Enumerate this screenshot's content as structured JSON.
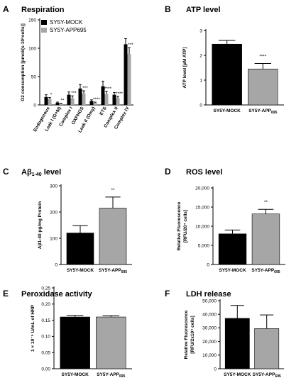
{
  "colors": {
    "black": "#000000",
    "gray": "#a6a6a6"
  },
  "panels": [
    {
      "id": "A",
      "type": "bar",
      "title": "Respiration",
      "ylabel": "O2 consumption [pmol/(s·10⁶cells)]",
      "ylim": [
        0,
        150
      ],
      "yticks": [
        "0",
        "50",
        "100",
        "150"
      ],
      "legend": {
        "position": "top-left",
        "entries": [
          {
            "name": "SY5Y-MOCK",
            "color": "black"
          },
          {
            "name": "SY5Y-APP695",
            "color": "gray"
          }
        ]
      },
      "categories": [
        "Endogenous",
        "Leak I (G+M)",
        "Complex I",
        "OXPHOS",
        "Leak II (Omy)",
        "ETS",
        "Complex II",
        "Complex IV"
      ],
      "series": [
        {
          "name": "SY5Y-MOCK",
          "color": "black",
          "values": [
            14,
            4,
            18,
            29,
            7,
            33,
            18,
            107
          ],
          "errors": [
            4,
            1,
            5,
            7,
            2,
            9,
            4,
            10
          ]
        },
        {
          "name": "SY5Y-APP695",
          "color": "gray",
          "values": [
            10,
            2,
            12,
            20,
            4,
            19,
            12,
            90
          ],
          "errors": [
            3,
            1,
            4,
            5,
            1,
            5,
            3,
            11
          ]
        }
      ],
      "significance": [
        "*",
        "**",
        "***",
        "***",
        "****",
        "****",
        "****",
        "***"
      ]
    },
    {
      "id": "B",
      "type": "bar",
      "title": "ATP level",
      "ylabel": "ATP level [µM ATP]",
      "ylim": [
        0,
        3
      ],
      "yticks": [
        "0",
        "1",
        "2",
        "3"
      ],
      "categories": [
        "SY5Y-MOCK",
        "SY5Y-APP"
      ],
      "category_subscripts": [
        "",
        "695"
      ],
      "values": [
        2.45,
        1.45
      ],
      "errors": [
        0.15,
        0.22
      ],
      "colors": [
        "black",
        "gray"
      ],
      "significance": [
        "",
        "****"
      ]
    },
    {
      "id": "C",
      "type": "bar",
      "title": "Aβ1-40 level",
      "ylabel": "Aβ1-40 pg/mg Protein",
      "ylim": [
        0,
        300
      ],
      "yticks": [
        "0",
        "100",
        "200",
        "300"
      ],
      "categories": [
        "SY5Y-MOCK",
        "SY5Y-APP"
      ],
      "category_subscripts": [
        "",
        "695"
      ],
      "values": [
        120,
        215
      ],
      "errors": [
        28,
        42
      ],
      "colors": [
        "black",
        "gray"
      ],
      "significance": [
        "",
        "**"
      ]
    },
    {
      "id": "D",
      "type": "bar",
      "title": "ROS level",
      "ylabel": "Relative Fluorescence",
      "ylabel2": "[RFU/20⁴ cells]",
      "ylim": [
        0,
        20000
      ],
      "yticks": [
        "0",
        "5,000",
        "10,000",
        "15,000",
        "20,000"
      ],
      "categories": [
        "SY5Y-MOCK",
        "SY5Y-APP"
      ],
      "category_subscripts": [
        "",
        "695"
      ],
      "values": [
        8000,
        13200
      ],
      "errors": [
        1000,
        1200
      ],
      "colors": [
        "black",
        "gray"
      ],
      "significance": [
        "",
        "**"
      ]
    },
    {
      "id": "E",
      "type": "bar",
      "title": "Peroxidase activity",
      "ylabel": "1 × 10⁻⁶ U/mL of HRP",
      "ylim": [
        0,
        0.25
      ],
      "yticks": [
        "0.00",
        "0.05",
        "0.10",
        "0.15",
        "0.20",
        "0.25"
      ],
      "categories": [
        "SY5Y-MOCK",
        "SY5Y-APP"
      ],
      "category_subscripts": [
        "",
        "695"
      ],
      "values": [
        0.16,
        0.16
      ],
      "errors": [
        0.005,
        0.004
      ],
      "colors": [
        "black",
        "gray"
      ],
      "significance": [
        "",
        ""
      ]
    },
    {
      "id": "F",
      "type": "bar",
      "title": "LDH release",
      "ylabel": "Relative Fluorescence",
      "ylabel2": "[RFU/2x10⁴ cells]",
      "ylim": [
        0,
        50000
      ],
      "yticks": [
        "0",
        "10,000",
        "20,000",
        "30,000",
        "40,000",
        "50,000"
      ],
      "categories": [
        "SY5Y-MOCK",
        "SY5Y-APP"
      ],
      "category_subscripts": [
        "",
        "695"
      ],
      "values": [
        37000,
        29500
      ],
      "errors": [
        9500,
        10000
      ],
      "colors": [
        "black",
        "gray"
      ],
      "significance": [
        "",
        ""
      ]
    }
  ]
}
